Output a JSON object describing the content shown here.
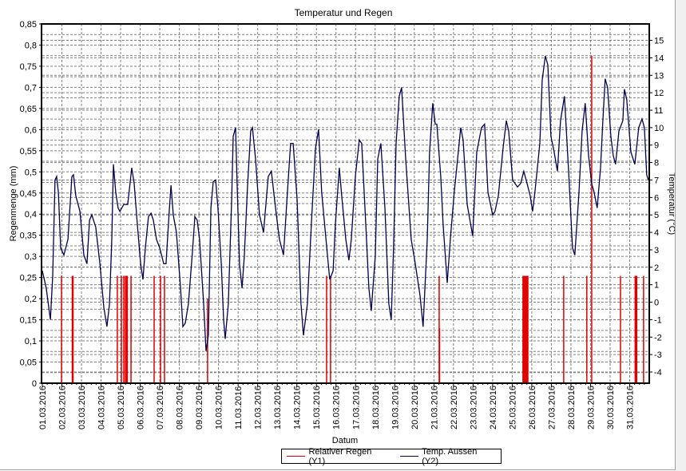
{
  "chart_data": {
    "type": "bar+line",
    "title": "Temperatur und Regen",
    "xlabel": "Datum",
    "ylabel": "Regenmenge (mm)",
    "y2label": "Temperatur (°C)",
    "ylim": [
      0,
      0.85
    ],
    "y2lim": [
      -4.64,
      15.94
    ],
    "xlim_days": [
      0,
      31
    ],
    "grid": true,
    "legend_position": "bottom-center",
    "y_ticks": [
      "0",
      "0,05",
      "0,1",
      "0,15",
      "0,2",
      "0,25",
      "0,3",
      "0,35",
      "0,4",
      "0,45",
      "0,5",
      "0,55",
      "0,6",
      "0,65",
      "0,7",
      "0,75",
      "0,8",
      "0,85"
    ],
    "y2_ticks": [
      "-4",
      "-3",
      "-2",
      "-1",
      "0",
      "1",
      "2",
      "3",
      "4",
      "5",
      "6",
      "7",
      "8",
      "9",
      "10",
      "11",
      "12",
      "13",
      "14",
      "15"
    ],
    "x_ticks": [
      "01.03.2016",
      "02.03.2016",
      "03.03.2016",
      "04.03.2016",
      "05.03.2016",
      "06.03.2016",
      "07.03.2016",
      "08.03.2016",
      "09.03.2016",
      "10.03.2016",
      "11.03.2016",
      "12.03.2016",
      "13.03.2016",
      "14.03.2016",
      "15.03.2016",
      "16.03.2016",
      "17.03.2016",
      "18.03.2016",
      "19.03.2016",
      "20.03.2016",
      "21.03.2016",
      "22.03.2016",
      "23.03.2016",
      "24.03.2016",
      "25.03.2016",
      "26.03.2016",
      "27.03.2016",
      "28.03.2016",
      "29.03.2016",
      "30.03.2016",
      "31.03.2016"
    ],
    "series": [
      {
        "name": "Relativer Regen (Y1)",
        "type": "bar",
        "axis": "y1",
        "color": "#e00000",
        "points": [
          [
            0.98,
            0.254
          ],
          [
            1.53,
            0.254
          ],
          [
            1.57,
            0.254
          ],
          [
            3.83,
            0.254
          ],
          [
            4.04,
            0.254
          ],
          [
            4.16,
            0.254
          ],
          [
            4.24,
            0.254
          ],
          [
            4.3,
            0.254
          ],
          [
            4.34,
            0.254
          ],
          [
            4.53,
            0.254
          ],
          [
            5.71,
            0.254
          ],
          [
            6.04,
            0.254
          ],
          [
            6.24,
            0.254
          ],
          [
            8.44,
            0.2
          ],
          [
            14.52,
            0.254
          ],
          [
            14.72,
            0.254
          ],
          [
            20.27,
            0.254
          ],
          [
            20.29,
            0.13
          ],
          [
            24.55,
            0.254
          ],
          [
            24.6,
            0.254
          ],
          [
            24.65,
            0.254
          ],
          [
            24.7,
            0.254
          ],
          [
            24.75,
            0.254
          ],
          [
            24.8,
            0.254
          ],
          [
            26.63,
            0.254
          ],
          [
            27.81,
            0.254
          ],
          [
            28.06,
            0.775
          ],
          [
            29.53,
            0.254
          ],
          [
            30.28,
            0.254
          ],
          [
            30.32,
            0.254
          ],
          [
            30.36,
            0.254
          ],
          [
            30.71,
            0.254
          ]
        ]
      },
      {
        "name": "Temp. Aussen (Y2)",
        "type": "line",
        "axis": "y2",
        "color": "#000050",
        "points": [
          [
            0,
            1.8
          ],
          [
            0.2,
            0.8
          ],
          [
            0.41,
            -1.0
          ],
          [
            0.53,
            1.5
          ],
          [
            0.65,
            7.0
          ],
          [
            0.73,
            7.2
          ],
          [
            0.82,
            6.3
          ],
          [
            0.94,
            3.1
          ],
          [
            1.1,
            2.7
          ],
          [
            1.31,
            3.6
          ],
          [
            1.51,
            7.2
          ],
          [
            1.59,
            7.3
          ],
          [
            1.71,
            6.1
          ],
          [
            1.92,
            5.2
          ],
          [
            2.12,
            2.7
          ],
          [
            2.28,
            2.2
          ],
          [
            2.41,
            4.7
          ],
          [
            2.53,
            5.0
          ],
          [
            2.73,
            4.3
          ],
          [
            2.94,
            2.2
          ],
          [
            3.14,
            -0.3
          ],
          [
            3.3,
            -1.4
          ],
          [
            3.43,
            -0.1
          ],
          [
            3.55,
            3.6
          ],
          [
            3.63,
            7.9
          ],
          [
            3.75,
            6.3
          ],
          [
            3.87,
            5.4
          ],
          [
            3.96,
            5.2
          ],
          [
            4.16,
            5.6
          ],
          [
            4.36,
            5.6
          ],
          [
            4.57,
            7.7
          ],
          [
            4.69,
            6.8
          ],
          [
            4.85,
            4.5
          ],
          [
            5.02,
            2.2
          ],
          [
            5.14,
            1.3
          ],
          [
            5.26,
            3.1
          ],
          [
            5.42,
            4.9
          ],
          [
            5.55,
            5.1
          ],
          [
            5.67,
            4.7
          ],
          [
            5.83,
            3.6
          ],
          [
            6.0,
            3.1
          ],
          [
            6.2,
            2.2
          ],
          [
            6.32,
            2.2
          ],
          [
            6.48,
            5.2
          ],
          [
            6.57,
            6.7
          ],
          [
            6.69,
            5.0
          ],
          [
            6.85,
            4.0
          ],
          [
            7.06,
            0.8
          ],
          [
            7.18,
            -1.4
          ],
          [
            7.3,
            -1.2
          ],
          [
            7.46,
            -0.1
          ],
          [
            7.67,
            2.9
          ],
          [
            7.79,
            4.9
          ],
          [
            7.91,
            4.7
          ],
          [
            8.03,
            3.6
          ],
          [
            8.24,
            -0.1
          ],
          [
            8.36,
            -2.8
          ],
          [
            8.48,
            -1.9
          ],
          [
            8.61,
            5.4
          ],
          [
            8.73,
            6.9
          ],
          [
            8.85,
            7.0
          ],
          [
            8.97,
            5.4
          ],
          [
            9.14,
            2.2
          ],
          [
            9.26,
            -1.0
          ],
          [
            9.34,
            -2.1
          ],
          [
            9.5,
            -0.1
          ],
          [
            9.67,
            5.9
          ],
          [
            9.75,
            9.5
          ],
          [
            9.87,
            10.0
          ],
          [
            9.95,
            6.8
          ],
          [
            10.07,
            2.2
          ],
          [
            10.2,
            0.8
          ],
          [
            10.32,
            2.7
          ],
          [
            10.48,
            6.6
          ],
          [
            10.64,
            9.8
          ],
          [
            10.73,
            10.0
          ],
          [
            10.89,
            8.2
          ],
          [
            11.09,
            5.0
          ],
          [
            11.3,
            4.0
          ],
          [
            11.54,
            7.2
          ],
          [
            11.7,
            7.5
          ],
          [
            11.91,
            5.4
          ],
          [
            12.11,
            3.6
          ],
          [
            12.32,
            2.7
          ],
          [
            12.52,
            6.3
          ],
          [
            12.68,
            9.1
          ],
          [
            12.81,
            9.1
          ],
          [
            13.01,
            5.9
          ],
          [
            13.21,
            -0.1
          ],
          [
            13.34,
            -1.9
          ],
          [
            13.54,
            -0.1
          ],
          [
            13.74,
            4.5
          ],
          [
            13.95,
            8.8
          ],
          [
            14.11,
            9.9
          ],
          [
            14.27,
            6.3
          ],
          [
            14.56,
            2.7
          ],
          [
            14.68,
            1.3
          ],
          [
            14.85,
            1.8
          ],
          [
            14.97,
            4.5
          ],
          [
            15.17,
            7.7
          ],
          [
            15.29,
            6.1
          ],
          [
            15.5,
            3.6
          ],
          [
            15.66,
            2.4
          ],
          [
            15.78,
            3.6
          ],
          [
            15.99,
            7.2
          ],
          [
            16.19,
            9.3
          ],
          [
            16.31,
            9.1
          ],
          [
            16.48,
            5.4
          ],
          [
            16.68,
            0.8
          ],
          [
            16.8,
            -0.5
          ],
          [
            17.01,
            2.7
          ],
          [
            17.13,
            8.2
          ],
          [
            17.29,
            9.1
          ],
          [
            17.5,
            5.4
          ],
          [
            17.7,
            -0.1
          ],
          [
            17.82,
            -1.0
          ],
          [
            17.94,
            3.1
          ],
          [
            18.07,
            9.1
          ],
          [
            18.23,
            11.8
          ],
          [
            18.35,
            12.3
          ],
          [
            18.56,
            8.2
          ],
          [
            18.84,
            3.6
          ],
          [
            19.05,
            2.2
          ],
          [
            19.29,
            0.4
          ],
          [
            19.45,
            -1.4
          ],
          [
            19.66,
            3.6
          ],
          [
            19.78,
            8.6
          ],
          [
            19.94,
            11.4
          ],
          [
            20.07,
            10.2
          ],
          [
            20.15,
            10.2
          ],
          [
            20.35,
            7.2
          ],
          [
            20.47,
            4.5
          ],
          [
            20.68,
            1.1
          ],
          [
            20.84,
            3.6
          ],
          [
            21.04,
            6.3
          ],
          [
            21.21,
            8.2
          ],
          [
            21.37,
            10.0
          ],
          [
            21.49,
            9.3
          ],
          [
            21.7,
            5.6
          ],
          [
            21.98,
            3.8
          ],
          [
            22.19,
            8.6
          ],
          [
            22.43,
            10.0
          ],
          [
            22.59,
            10.2
          ],
          [
            22.76,
            6.3
          ],
          [
            23.0,
            5.0
          ],
          [
            23.12,
            5.2
          ],
          [
            23.29,
            6.1
          ],
          [
            23.53,
            8.8
          ],
          [
            23.7,
            10.4
          ],
          [
            23.82,
            9.8
          ],
          [
            24.02,
            7.0
          ],
          [
            24.27,
            6.6
          ],
          [
            24.43,
            6.8
          ],
          [
            24.59,
            7.5
          ],
          [
            24.76,
            6.8
          ],
          [
            24.92,
            6.1
          ],
          [
            25.04,
            5.2
          ],
          [
            25.16,
            6.3
          ],
          [
            25.41,
            9.1
          ],
          [
            25.53,
            12.7
          ],
          [
            25.69,
            14.1
          ],
          [
            25.82,
            13.6
          ],
          [
            25.98,
            9.5
          ],
          [
            26.14,
            8.6
          ],
          [
            26.31,
            7.5
          ],
          [
            26.47,
            10.4
          ],
          [
            26.67,
            11.8
          ],
          [
            26.88,
            7.5
          ],
          [
            27.08,
            3.1
          ],
          [
            27.2,
            2.7
          ],
          [
            27.41,
            6.3
          ],
          [
            27.57,
            9.8
          ],
          [
            27.73,
            11.4
          ],
          [
            27.9,
            8.4
          ],
          [
            28.06,
            6.8
          ],
          [
            28.18,
            6.3
          ],
          [
            28.34,
            5.4
          ],
          [
            28.51,
            7.7
          ],
          [
            28.63,
            10.4
          ],
          [
            28.75,
            12.8
          ],
          [
            28.87,
            12.3
          ],
          [
            29.04,
            9.5
          ],
          [
            29.16,
            8.4
          ],
          [
            29.28,
            7.9
          ],
          [
            29.45,
            9.8
          ],
          [
            29.65,
            10.4
          ],
          [
            29.73,
            12.2
          ],
          [
            29.85,
            11.6
          ],
          [
            30.06,
            8.6
          ],
          [
            30.26,
            7.9
          ],
          [
            30.46,
            10.0
          ],
          [
            30.63,
            10.5
          ],
          [
            30.75,
            10.0
          ],
          [
            30.87,
            7.3
          ],
          [
            30.95,
            7.0
          ]
        ]
      }
    ]
  }
}
